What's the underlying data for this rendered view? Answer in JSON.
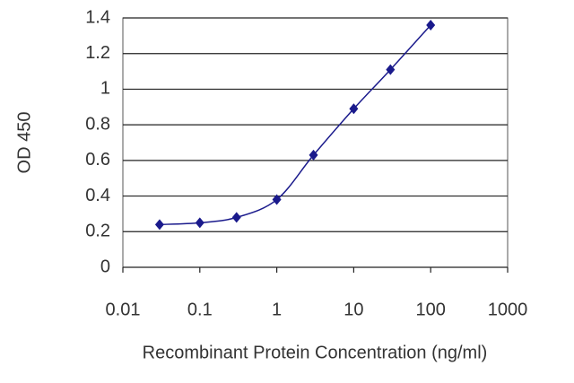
{
  "chart_data": {
    "type": "line",
    "xlabel": "Recombinant Protein Concentration (ng/ml)",
    "ylabel": "OD 450",
    "x": [
      0.03,
      0.1,
      0.3,
      1,
      3,
      10,
      30,
      100
    ],
    "values": [
      0.24,
      0.25,
      0.28,
      0.38,
      0.63,
      0.89,
      1.11,
      1.36
    ],
    "color": "#1a1a8c",
    "xscale": "log",
    "xlim": [
      0.01,
      1000
    ],
    "xticks": [
      0.01,
      0.1,
      1,
      10,
      100,
      1000
    ],
    "ylim": [
      0,
      1.4
    ],
    "yticks": [
      0,
      0.2,
      0.4,
      0.6,
      0.8,
      1,
      1.2,
      1.4
    ],
    "grid": true
  }
}
